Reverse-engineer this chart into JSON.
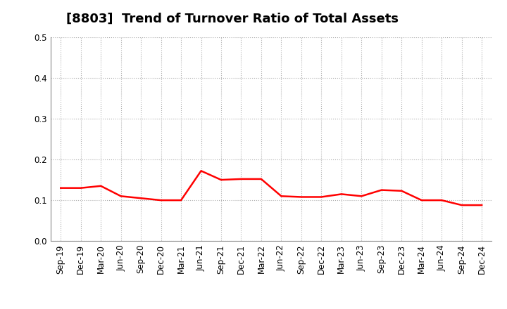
{
  "title": "[8803]  Trend of Turnover Ratio of Total Assets",
  "labels": [
    "Sep-19",
    "Dec-19",
    "Mar-20",
    "Jun-20",
    "Sep-20",
    "Dec-20",
    "Mar-21",
    "Jun-21",
    "Sep-21",
    "Dec-21",
    "Mar-22",
    "Jun-22",
    "Sep-22",
    "Dec-22",
    "Mar-23",
    "Jun-23",
    "Sep-23",
    "Dec-23",
    "Mar-24",
    "Jun-24",
    "Sep-24",
    "Dec-24"
  ],
  "values": [
    0.13,
    0.13,
    0.135,
    0.11,
    0.105,
    0.1,
    0.1,
    0.172,
    0.15,
    0.152,
    0.152,
    0.11,
    0.108,
    0.108,
    0.115,
    0.11,
    0.125,
    0.123,
    0.1,
    0.1,
    0.088,
    0.088
  ],
  "line_color": "#FF0000",
  "line_width": 1.8,
  "ylim": [
    0.0,
    0.5
  ],
  "yticks": [
    0.0,
    0.1,
    0.2,
    0.3,
    0.4,
    0.5
  ],
  "bg_color": "#ffffff",
  "grid_color": "#b0b0b0",
  "title_fontsize": 13,
  "tick_fontsize": 8.5
}
